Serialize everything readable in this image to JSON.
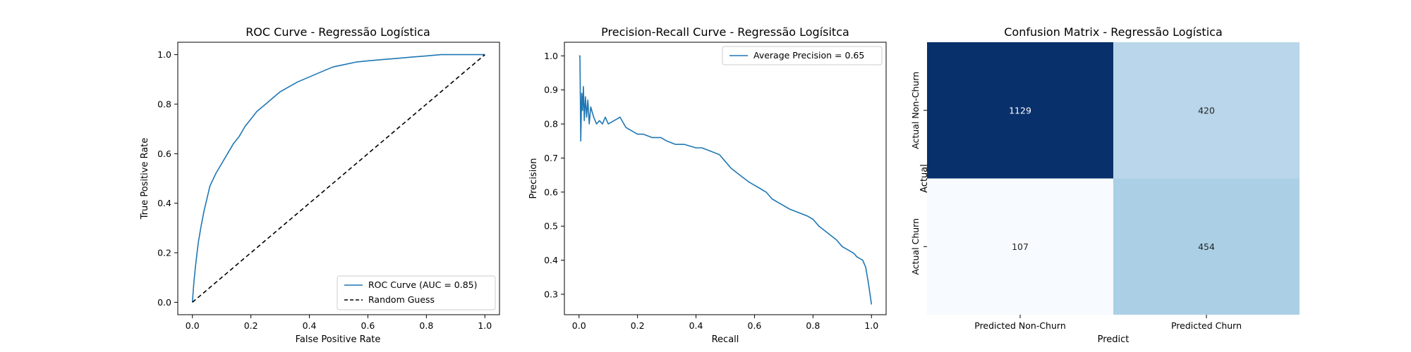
{
  "chart_data": [
    {
      "type": "line",
      "title": "ROC Curve - Regressão Logística",
      "xlabel": "False Positive Rate",
      "ylabel": "True Positive Rate",
      "xlim": [
        -0.05,
        1.05
      ],
      "ylim": [
        -0.05,
        1.05
      ],
      "xticks": [
        "0.0",
        "0.2",
        "0.4",
        "0.6",
        "0.8",
        "1.0"
      ],
      "yticks": [
        "0.0",
        "0.2",
        "0.4",
        "0.6",
        "0.8",
        "1.0"
      ],
      "legend_position": "lower-right",
      "series": [
        {
          "name": "ROC Curve (AUC = 0.85)",
          "color": "#1f77b4",
          "style": "solid",
          "x": [
            0.0,
            0.005,
            0.01,
            0.015,
            0.02,
            0.03,
            0.04,
            0.05,
            0.06,
            0.08,
            0.1,
            0.12,
            0.14,
            0.16,
            0.18,
            0.2,
            0.22,
            0.25,
            0.28,
            0.3,
            0.33,
            0.36,
            0.4,
            0.44,
            0.48,
            0.52,
            0.56,
            0.6,
            0.65,
            0.7,
            0.75,
            0.8,
            0.85,
            0.9,
            0.95,
            1.0
          ],
          "y": [
            0.0,
            0.08,
            0.14,
            0.19,
            0.24,
            0.31,
            0.37,
            0.42,
            0.47,
            0.52,
            0.56,
            0.6,
            0.64,
            0.67,
            0.71,
            0.74,
            0.77,
            0.8,
            0.83,
            0.85,
            0.87,
            0.89,
            0.91,
            0.93,
            0.95,
            0.96,
            0.97,
            0.975,
            0.98,
            0.985,
            0.99,
            0.995,
            1.0,
            1.0,
            1.0,
            1.0
          ]
        },
        {
          "name": "Random Guess",
          "color": "#000000",
          "style": "dashed",
          "x": [
            0.0,
            1.0
          ],
          "y": [
            0.0,
            1.0
          ]
        }
      ]
    },
    {
      "type": "line",
      "title": "Precision-Recall Curve - Regressão Logísitca",
      "xlabel": "Recall",
      "ylabel": "Precision",
      "xlim": [
        -0.05,
        1.05
      ],
      "ylim": [
        0.24,
        1.04
      ],
      "xticks": [
        "0.0",
        "0.2",
        "0.4",
        "0.6",
        "0.8",
        "1.0"
      ],
      "yticks": [
        "0.3",
        "0.4",
        "0.5",
        "0.6",
        "0.7",
        "0.8",
        "0.9",
        "1.0"
      ],
      "legend_position": "upper-right",
      "series": [
        {
          "name": "Average Precision = 0.65",
          "color": "#1f77b4",
          "style": "solid",
          "x": [
            0.0,
            0.003,
            0.006,
            0.009,
            0.012,
            0.015,
            0.018,
            0.022,
            0.026,
            0.03,
            0.035,
            0.04,
            0.05,
            0.06,
            0.07,
            0.08,
            0.09,
            0.1,
            0.12,
            0.14,
            0.16,
            0.18,
            0.2,
            0.22,
            0.25,
            0.28,
            0.3,
            0.33,
            0.36,
            0.4,
            0.42,
            0.45,
            0.48,
            0.5,
            0.52,
            0.55,
            0.58,
            0.6,
            0.62,
            0.64,
            0.66,
            0.68,
            0.7,
            0.72,
            0.75,
            0.78,
            0.8,
            0.82,
            0.85,
            0.88,
            0.9,
            0.92,
            0.94,
            0.95,
            0.97,
            0.98,
            0.99,
            1.0
          ],
          "y": [
            1.0,
            1.0,
            0.75,
            0.89,
            0.84,
            0.91,
            0.81,
            0.88,
            0.82,
            0.87,
            0.8,
            0.85,
            0.82,
            0.8,
            0.81,
            0.8,
            0.82,
            0.8,
            0.81,
            0.82,
            0.79,
            0.78,
            0.77,
            0.77,
            0.76,
            0.76,
            0.75,
            0.74,
            0.74,
            0.73,
            0.73,
            0.72,
            0.71,
            0.69,
            0.67,
            0.65,
            0.63,
            0.62,
            0.61,
            0.6,
            0.58,
            0.57,
            0.56,
            0.55,
            0.54,
            0.53,
            0.52,
            0.5,
            0.48,
            0.46,
            0.44,
            0.43,
            0.42,
            0.41,
            0.4,
            0.38,
            0.33,
            0.27
          ]
        }
      ]
    },
    {
      "type": "heatmap",
      "title": "Confusion Matrix - Regressão Logística",
      "xlabel": "Predict",
      "ylabel": "Actual",
      "x_categories": [
        "Predicted Non-Churn",
        "Predicted Churn"
      ],
      "y_categories": [
        "Actual Non-Churn",
        "Actual Churn"
      ],
      "values": [
        [
          1129,
          420
        ],
        [
          107,
          454
        ]
      ],
      "colormap": "Blues",
      "colors": [
        [
          "#08306b",
          "#b9d6ea"
        ],
        [
          "#f7fbff",
          "#abd0e6"
        ]
      ],
      "text_colors": [
        [
          "#ffffff",
          "#262626"
        ],
        [
          "#262626",
          "#262626"
        ]
      ]
    }
  ]
}
